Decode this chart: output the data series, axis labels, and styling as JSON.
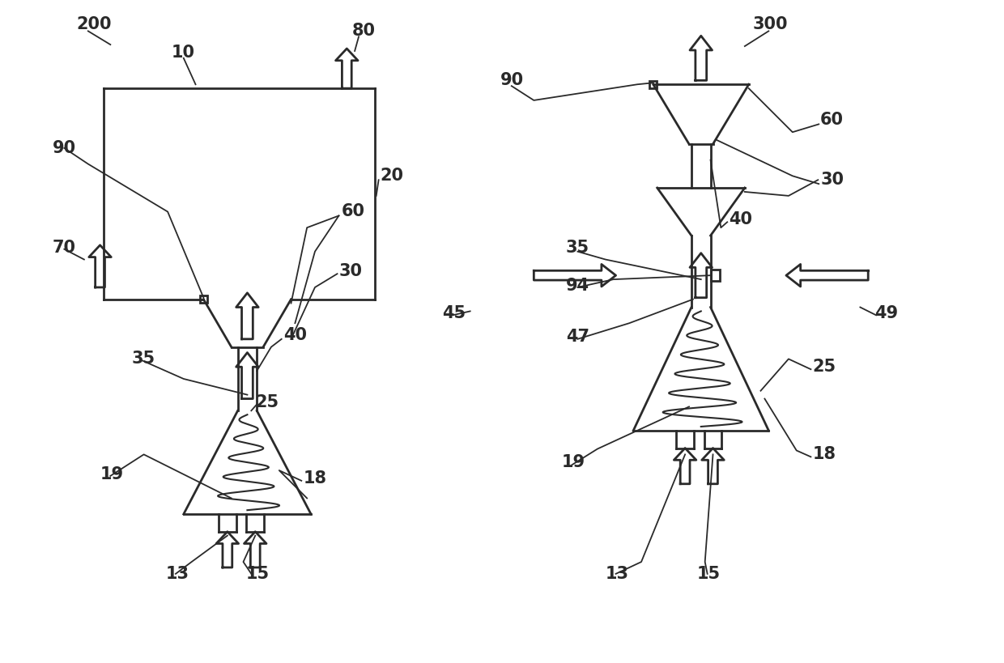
{
  "bg_color": "#ffffff",
  "line_color": "#2a2a2a",
  "lw": 2.0,
  "fig_width": 12.4,
  "fig_height": 8.2
}
